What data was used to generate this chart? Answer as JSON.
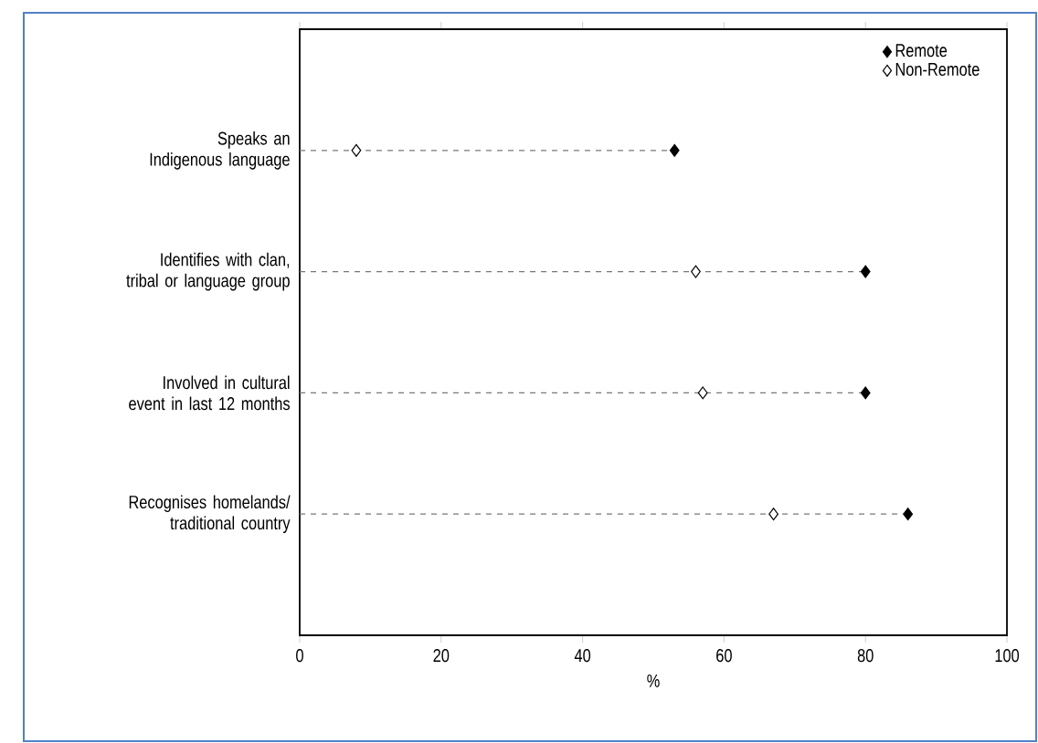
{
  "chart_data": {
    "type": "lollipop",
    "orientation": "horizontal",
    "xlabel": "%",
    "categories": [
      "Speaks an Indigenous language",
      "Identifies with clan, tribal or language group",
      "Involved in cultural event in last 12 months",
      "Recognises homelands/ traditional country"
    ],
    "series": [
      {
        "name": "Remote",
        "color": "#000000",
        "values": [
          53,
          80,
          80,
          86
        ]
      },
      {
        "name": "Non-Remote",
        "type": "scatter",
        "color": "#ffffff",
        "values": [
          8,
          56,
          57,
          67
        ]
      }
    ],
    "xlim": [
      0,
      100
    ],
    "xticks": [
      0,
      20,
      40,
      60,
      80,
      100
    ],
    "legend": "top right",
    "marker": "diamond",
    "line_style": "dashed"
  }
}
